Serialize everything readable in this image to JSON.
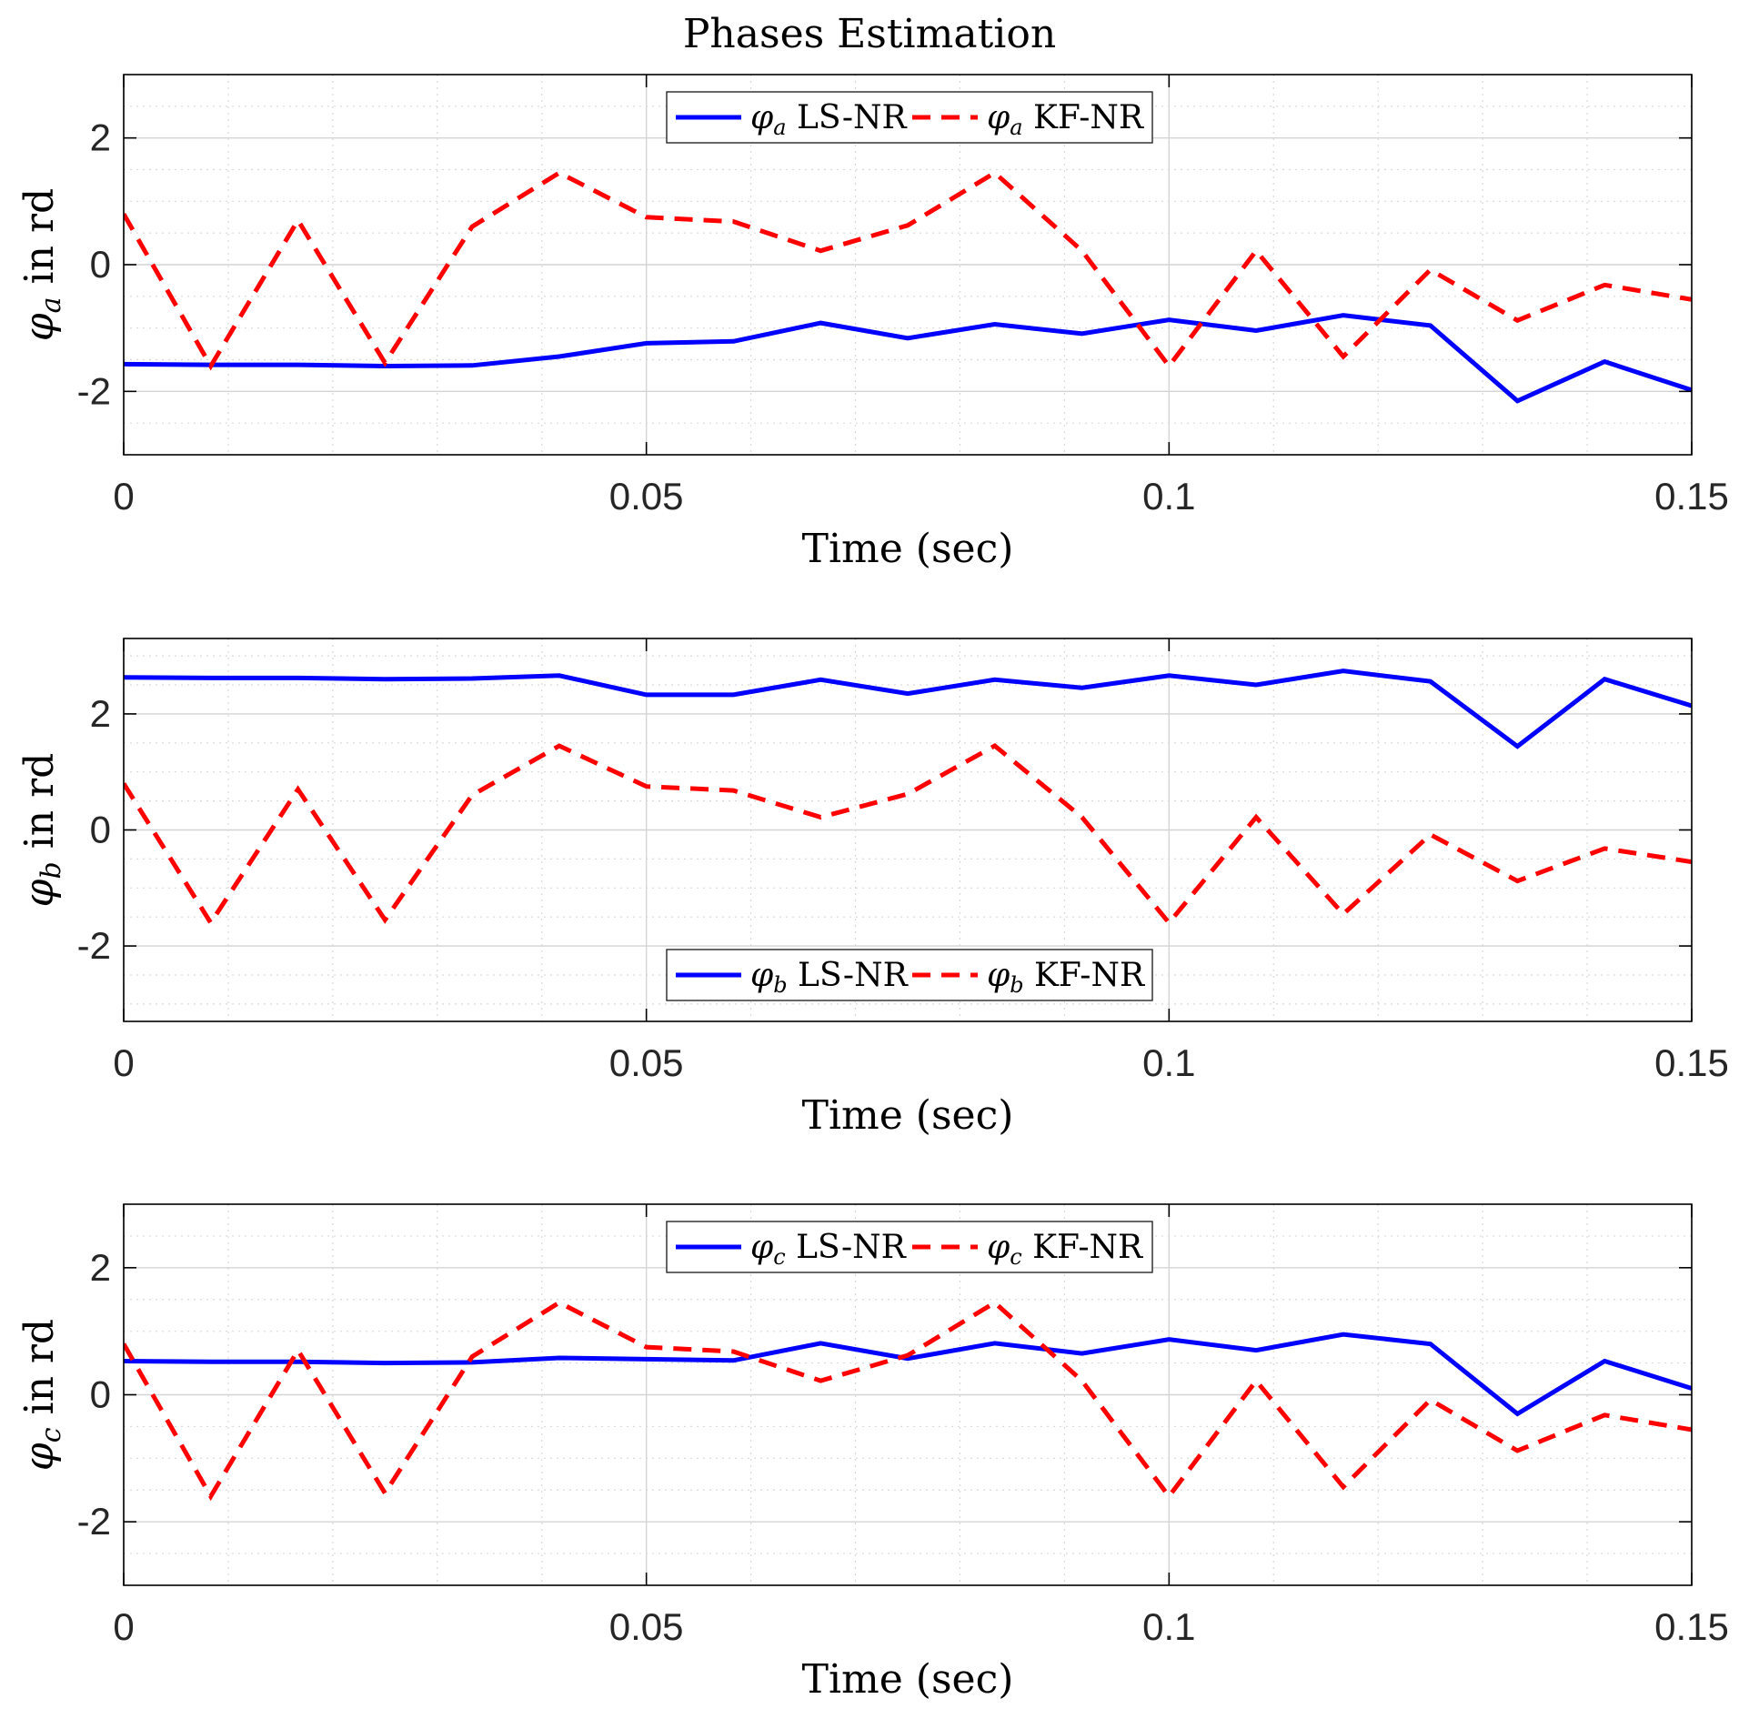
{
  "title": "Phases Estimation",
  "colors": {
    "ls": "#0000ff",
    "kf": "#ff0000",
    "axis": "#000000",
    "grid": "#d4d4d4"
  },
  "chart_data": [
    {
      "type": "line",
      "name": "phase-a",
      "xlabel": "Time (sec)",
      "ylabel_symbol": "φ",
      "ylabel_sub": "a",
      "ylabel_text": " in rd",
      "xlim": [
        0,
        0.15
      ],
      "ylim": [
        -3,
        3
      ],
      "xticks": [
        0,
        0.05,
        0.1,
        0.15
      ],
      "xtick_labels": [
        "0",
        "0.05",
        "0.1",
        "0.15"
      ],
      "yticks": [
        -2,
        0,
        2
      ],
      "ytick_labels": [
        "-2",
        "0",
        "2"
      ],
      "grid": true,
      "legend_position": "top-center",
      "x": [
        0,
        0.00833,
        0.01667,
        0.025,
        0.03333,
        0.04167,
        0.05,
        0.05833,
        0.06667,
        0.075,
        0.08333,
        0.09167,
        0.1,
        0.10833,
        0.11667,
        0.125,
        0.13333,
        0.14167,
        0.15
      ],
      "series": [
        {
          "name": "LS-NR",
          "legend_symbol": "φ",
          "legend_sub": "a",
          "style": "solid",
          "values": [
            -1.57,
            -1.58,
            -1.58,
            -1.6,
            -1.59,
            -1.45,
            -1.24,
            -1.21,
            -0.92,
            -1.16,
            -0.94,
            -1.09,
            -0.87,
            -1.04,
            -0.8,
            -0.96,
            -2.15,
            -1.53,
            -1.98
          ]
        },
        {
          "name": "KF-NR",
          "legend_symbol": "φ",
          "legend_sub": "a",
          "style": "dashed",
          "values": [
            0.8,
            -1.6,
            0.7,
            -1.55,
            0.6,
            1.45,
            0.75,
            0.68,
            0.22,
            0.62,
            1.45,
            0.22,
            -1.6,
            0.22,
            -1.45,
            -0.08,
            -0.88,
            -0.32,
            -0.55
          ]
        }
      ]
    },
    {
      "type": "line",
      "name": "phase-b",
      "xlabel": "Time (sec)",
      "ylabel_symbol": "φ",
      "ylabel_sub": "b",
      "ylabel_text": " in rd",
      "xlim": [
        0,
        0.15
      ],
      "ylim": [
        -3.3,
        3.3
      ],
      "xticks": [
        0,
        0.05,
        0.1,
        0.15
      ],
      "xtick_labels": [
        "0",
        "0.05",
        "0.1",
        "0.15"
      ],
      "yticks": [
        -2,
        0,
        2
      ],
      "ytick_labels": [
        "-2",
        "0",
        "2"
      ],
      "grid": true,
      "legend_position": "bottom-center",
      "x": [
        0,
        0.00833,
        0.01667,
        0.025,
        0.03333,
        0.04167,
        0.05,
        0.05833,
        0.06667,
        0.075,
        0.08333,
        0.09167,
        0.1,
        0.10833,
        0.11667,
        0.125,
        0.13333,
        0.14167,
        0.15
      ],
      "series": [
        {
          "name": "LS-NR",
          "legend_symbol": "φ",
          "legend_sub": "b",
          "style": "solid",
          "values": [
            2.63,
            2.62,
            2.62,
            2.6,
            2.61,
            2.66,
            2.33,
            2.33,
            2.59,
            2.35,
            2.59,
            2.45,
            2.66,
            2.5,
            2.74,
            2.56,
            1.44,
            2.6,
            2.14
          ]
        },
        {
          "name": "KF-NR",
          "legend_symbol": "φ",
          "legend_sub": "b",
          "style": "dashed",
          "values": [
            0.8,
            -1.6,
            0.7,
            -1.55,
            0.6,
            1.45,
            0.75,
            0.68,
            0.22,
            0.62,
            1.45,
            0.22,
            -1.6,
            0.22,
            -1.45,
            -0.08,
            -0.88,
            -0.32,
            -0.55
          ]
        }
      ]
    },
    {
      "type": "line",
      "name": "phase-c",
      "xlabel": "Time (sec)",
      "ylabel_symbol": "φ",
      "ylabel_sub": "c",
      "ylabel_text": " in rd",
      "xlim": [
        0,
        0.15
      ],
      "ylim": [
        -3,
        3
      ],
      "xticks": [
        0,
        0.05,
        0.1,
        0.15
      ],
      "xtick_labels": [
        "0",
        "0.05",
        "0.1",
        "0.15"
      ],
      "yticks": [
        -2,
        0,
        2
      ],
      "ytick_labels": [
        "-2",
        "0",
        "2"
      ],
      "grid": true,
      "legend_position": "top-center",
      "x": [
        0,
        0.00833,
        0.01667,
        0.025,
        0.03333,
        0.04167,
        0.05,
        0.05833,
        0.06667,
        0.075,
        0.08333,
        0.09167,
        0.1,
        0.10833,
        0.11667,
        0.125,
        0.13333,
        0.14167,
        0.15
      ],
      "series": [
        {
          "name": "LS-NR",
          "legend_symbol": "φ",
          "legend_sub": "c",
          "style": "solid",
          "values": [
            0.53,
            0.52,
            0.52,
            0.5,
            0.51,
            0.58,
            0.56,
            0.54,
            0.81,
            0.57,
            0.81,
            0.65,
            0.87,
            0.7,
            0.95,
            0.8,
            -0.3,
            0.53,
            0.1
          ]
        },
        {
          "name": "KF-NR",
          "legend_symbol": "φ",
          "legend_sub": "c",
          "style": "dashed",
          "values": [
            0.8,
            -1.6,
            0.7,
            -1.55,
            0.6,
            1.45,
            0.75,
            0.68,
            0.22,
            0.62,
            1.45,
            0.22,
            -1.6,
            0.22,
            -1.45,
            -0.08,
            -0.88,
            -0.32,
            -0.55
          ]
        }
      ]
    }
  ]
}
